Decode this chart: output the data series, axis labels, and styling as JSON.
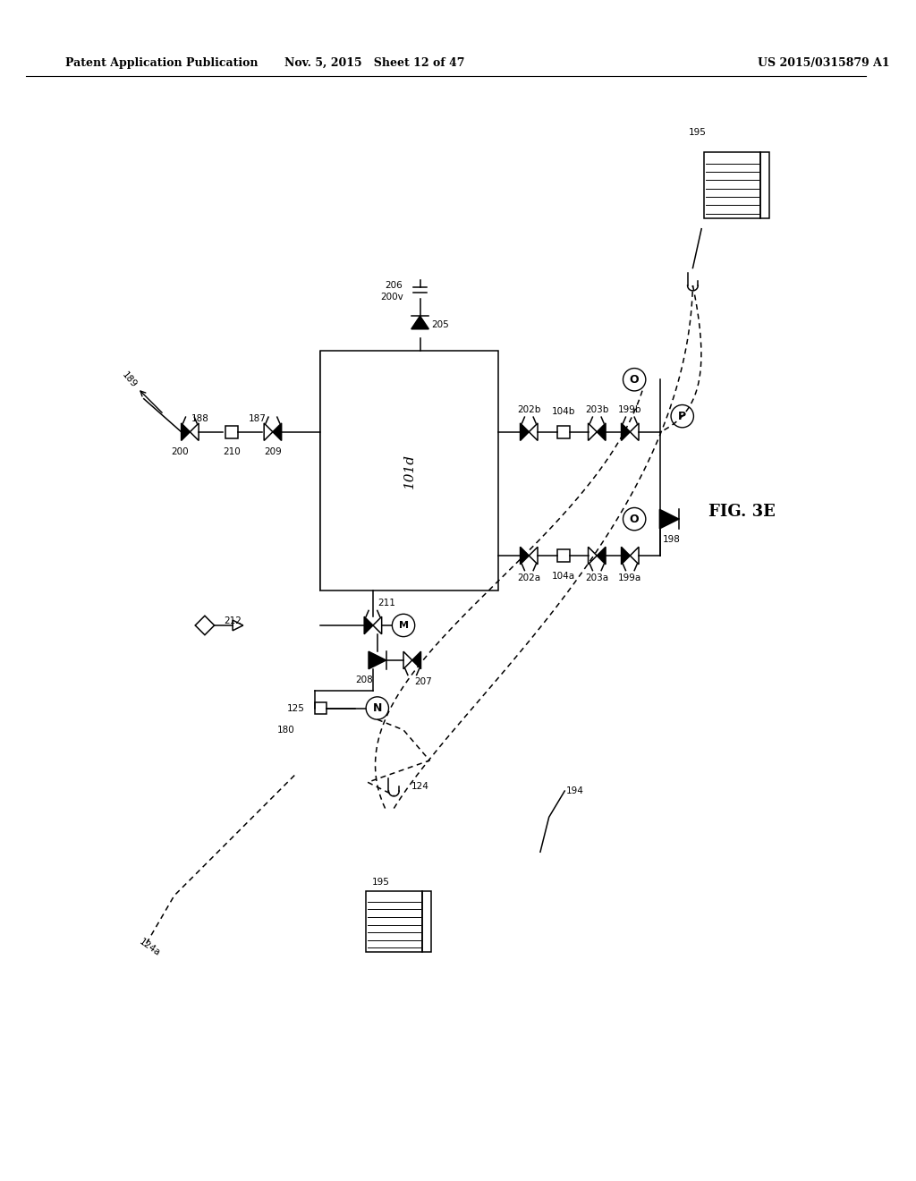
{
  "title_left": "Patent Application Publication",
  "title_mid": "Nov. 5, 2015   Sheet 12 of 47",
  "title_right": "US 2015/0315879 A1",
  "fig_label": "FIG. 3E",
  "bg_color": "#ffffff",
  "line_color": "#000000",
  "header_font_size": 9,
  "label_font_size": 7.5,
  "fig_label_font_size": 13
}
